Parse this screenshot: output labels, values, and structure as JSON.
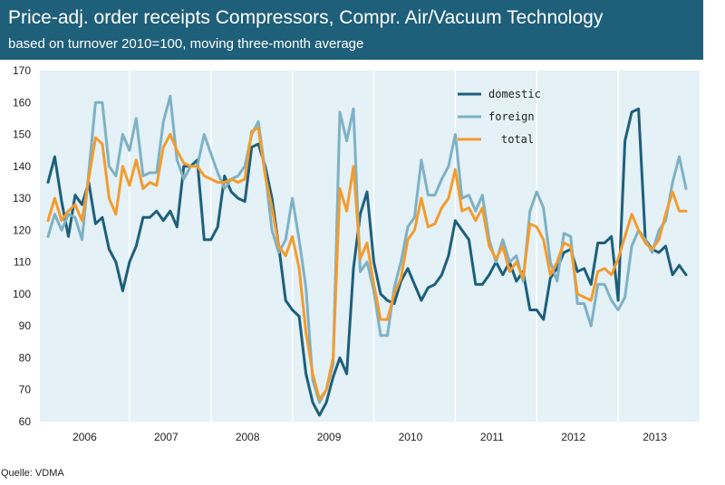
{
  "header": {
    "title": "Price-adj. order receipts Compressors, Compr. Air/Vacuum Technology",
    "subtitle": "based on turnover 2010=100, moving three-month average"
  },
  "footer": {
    "source": "Quelle: VDMA"
  },
  "colors": {
    "header_bg": "#1e5f7a",
    "plot_bg": "#e4f1f7",
    "domestic": "#1e5f7a",
    "foreign": "#7fb1c4",
    "total": "#f39c2d"
  },
  "chart_data": {
    "type": "line",
    "title": "Price-adj. order receipts Compressors, Compr. Air/Vacuum Technology",
    "subtitle": "based on turnover 2010=100, moving three-month average",
    "xlabel": "",
    "ylabel": "",
    "ylim": [
      60,
      170
    ],
    "yticks": [
      60,
      70,
      80,
      90,
      100,
      110,
      120,
      130,
      140,
      150,
      160,
      170
    ],
    "xlim": [
      2005.9,
      2014.0
    ],
    "year_labels": [
      "2006",
      "2007",
      "2008",
      "2009",
      "2010",
      "2011",
      "2012",
      "2013"
    ],
    "year_label_positions": [
      2006.45,
      2007.45,
      2008.45,
      2009.45,
      2010.45,
      2011.45,
      2012.45,
      2013.45
    ],
    "year_dividers": [
      2007.0,
      2008.0,
      2009.0,
      2010.0,
      2011.0,
      2012.0,
      2013.0
    ],
    "grid": false,
    "legend_position": "top-right",
    "series": [
      {
        "name": "domestic",
        "color": "#1e5f7a",
        "x": [
          2006.0,
          2006.083,
          2006.167,
          2006.25,
          2006.333,
          2006.417,
          2006.5,
          2006.583,
          2006.667,
          2006.75,
          2006.833,
          2006.917,
          2007.0,
          2007.083,
          2007.167,
          2007.25,
          2007.333,
          2007.417,
          2007.5,
          2007.583,
          2007.667,
          2007.75,
          2007.833,
          2007.917,
          2008.0,
          2008.083,
          2008.167,
          2008.25,
          2008.333,
          2008.417,
          2008.5,
          2008.583,
          2008.667,
          2008.75,
          2008.833,
          2008.917,
          2009.0,
          2009.083,
          2009.167,
          2009.25,
          2009.333,
          2009.417,
          2009.5,
          2009.583,
          2009.667,
          2009.75,
          2009.833,
          2009.917,
          2010.0,
          2010.083,
          2010.167,
          2010.25,
          2010.333,
          2010.417,
          2010.5,
          2010.583,
          2010.667,
          2010.75,
          2010.833,
          2010.917,
          2011.0,
          2011.083,
          2011.167,
          2011.25,
          2011.333,
          2011.417,
          2011.5,
          2011.583,
          2011.667,
          2011.75,
          2011.833,
          2011.917,
          2012.0,
          2012.083,
          2012.167,
          2012.25,
          2012.333,
          2012.417,
          2012.5,
          2012.583,
          2012.667,
          2012.75,
          2012.833,
          2012.917,
          2013.0,
          2013.083,
          2013.167,
          2013.25,
          2013.333,
          2013.417,
          2013.5,
          2013.583,
          2013.667,
          2013.75,
          2013.833
        ],
        "values": [
          135,
          143,
          129,
          118,
          131,
          128,
          135,
          122,
          124,
          114,
          110,
          101,
          110,
          115,
          124,
          124,
          126,
          123,
          126,
          121,
          140,
          140,
          142,
          117,
          117,
          121,
          137,
          132,
          130,
          129,
          146,
          147,
          140,
          130,
          115,
          98,
          95,
          93,
          75,
          66,
          62,
          66,
          74,
          80,
          75,
          108,
          125,
          132,
          110,
          100,
          98,
          97,
          104,
          108,
          103,
          98,
          102,
          103,
          106,
          112,
          123,
          120,
          117,
          103,
          103,
          106,
          110,
          106,
          110,
          104,
          107,
          95,
          95,
          92,
          105,
          108,
          113,
          114,
          107,
          108,
          103,
          116,
          116,
          118,
          98,
          148,
          157,
          158,
          117,
          114,
          113,
          115,
          106,
          109,
          106
        ]
      },
      {
        "name": "foreign",
        "color": "#7fb1c4",
        "x": [
          2006.0,
          2006.083,
          2006.167,
          2006.25,
          2006.333,
          2006.417,
          2006.5,
          2006.583,
          2006.667,
          2006.75,
          2006.833,
          2006.917,
          2007.0,
          2007.083,
          2007.167,
          2007.25,
          2007.333,
          2007.417,
          2007.5,
          2007.583,
          2007.667,
          2007.75,
          2007.833,
          2007.917,
          2008.0,
          2008.083,
          2008.167,
          2008.25,
          2008.333,
          2008.417,
          2008.5,
          2008.583,
          2008.667,
          2008.75,
          2008.833,
          2008.917,
          2009.0,
          2009.083,
          2009.167,
          2009.25,
          2009.333,
          2009.417,
          2009.5,
          2009.583,
          2009.667,
          2009.75,
          2009.833,
          2009.917,
          2010.0,
          2010.083,
          2010.167,
          2010.25,
          2010.333,
          2010.417,
          2010.5,
          2010.583,
          2010.667,
          2010.75,
          2010.833,
          2010.917,
          2011.0,
          2011.083,
          2011.167,
          2011.25,
          2011.333,
          2011.417,
          2011.5,
          2011.583,
          2011.667,
          2011.75,
          2011.833,
          2011.917,
          2012.0,
          2012.083,
          2012.167,
          2012.25,
          2012.333,
          2012.417,
          2012.5,
          2012.583,
          2012.667,
          2012.75,
          2012.833,
          2012.917,
          2013.0,
          2013.083,
          2013.167,
          2013.25,
          2013.333,
          2013.417,
          2013.5,
          2013.583,
          2013.667,
          2013.75,
          2013.833
        ],
        "values": [
          118,
          125,
          120,
          125,
          124,
          117,
          138,
          160,
          160,
          140,
          137,
          150,
          145,
          155,
          137,
          138,
          138,
          154,
          162,
          142,
          136,
          140,
          140,
          150,
          144,
          138,
          133,
          136,
          137,
          140,
          150,
          154,
          138,
          120,
          113,
          117,
          130,
          117,
          102,
          73,
          66,
          70,
          78,
          157,
          148,
          158,
          107,
          110,
          101,
          87,
          87,
          102,
          110,
          121,
          124,
          142,
          131,
          131,
          136,
          140,
          150,
          130,
          131,
          126,
          131,
          117,
          110,
          117,
          110,
          112,
          104,
          126,
          132,
          127,
          110,
          104,
          119,
          118,
          97,
          97,
          90,
          103,
          103,
          98,
          95,
          99,
          115,
          120,
          117,
          113,
          120,
          123,
          135,
          143,
          133
        ]
      },
      {
        "name": "total",
        "color": "#f39c2d",
        "x": [
          2006.0,
          2006.083,
          2006.167,
          2006.25,
          2006.333,
          2006.417,
          2006.5,
          2006.583,
          2006.667,
          2006.75,
          2006.833,
          2006.917,
          2007.0,
          2007.083,
          2007.167,
          2007.25,
          2007.333,
          2007.417,
          2007.5,
          2007.583,
          2007.667,
          2007.75,
          2007.833,
          2007.917,
          2008.0,
          2008.083,
          2008.167,
          2008.25,
          2008.333,
          2008.417,
          2008.5,
          2008.583,
          2008.667,
          2008.75,
          2008.833,
          2008.917,
          2009.0,
          2009.083,
          2009.167,
          2009.25,
          2009.333,
          2009.417,
          2009.5,
          2009.583,
          2009.667,
          2009.75,
          2009.833,
          2009.917,
          2010.0,
          2010.083,
          2010.167,
          2010.25,
          2010.333,
          2010.417,
          2010.5,
          2010.583,
          2010.667,
          2010.75,
          2010.833,
          2010.917,
          2011.0,
          2011.083,
          2011.167,
          2011.25,
          2011.333,
          2011.417,
          2011.5,
          2011.583,
          2011.667,
          2011.75,
          2011.833,
          2011.917,
          2012.0,
          2012.083,
          2012.167,
          2012.25,
          2012.333,
          2012.417,
          2012.5,
          2012.583,
          2012.667,
          2012.75,
          2012.833,
          2012.917,
          2013.0,
          2013.083,
          2013.167,
          2013.25,
          2013.333,
          2013.417,
          2013.5,
          2013.583,
          2013.667,
          2013.75,
          2013.833
        ],
        "values": [
          123,
          130,
          123,
          126,
          128,
          123,
          136,
          149,
          147,
          130,
          125,
          140,
          134,
          142,
          133,
          135,
          134,
          146,
          150,
          145,
          141,
          140,
          140,
          137,
          136,
          135,
          135,
          136,
          135,
          136,
          151,
          152,
          137,
          127,
          115,
          112,
          118,
          108,
          88,
          75,
          67,
          70,
          80,
          133,
          126,
          140,
          111,
          116,
          103,
          92,
          92,
          100,
          105,
          117,
          120,
          130,
          121,
          122,
          127,
          130,
          139,
          126,
          127,
          123,
          127,
          115,
          111,
          115,
          107,
          110,
          105,
          122,
          121,
          117,
          106,
          110,
          116,
          115,
          100,
          99,
          98,
          107,
          108,
          106,
          111,
          118,
          125,
          120,
          116,
          114,
          117,
          125,
          132,
          126,
          126
        ]
      }
    ]
  }
}
